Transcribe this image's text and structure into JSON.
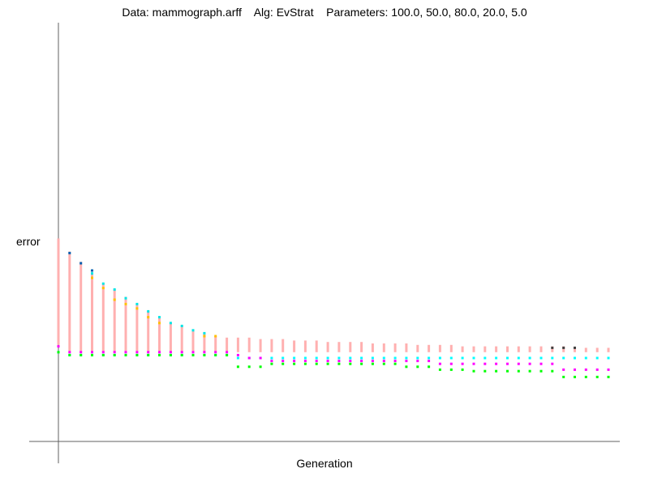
{
  "chart_data": {
    "type": "scatter",
    "title": "Data: mammograph.arff    Alg: EvStrat    Parameters: 100.0, 50.0, 80.0, 20.0, 5.0",
    "xlabel": "Generation",
    "ylabel": "error",
    "grid": false,
    "legend": "none",
    "x": [
      0,
      1,
      2,
      3,
      4,
      5,
      6,
      7,
      8,
      9,
      10,
      11,
      12,
      13,
      14,
      15,
      16,
      17,
      18,
      19,
      20,
      21,
      22,
      23,
      24,
      25,
      26,
      27,
      28,
      29,
      30,
      31,
      32,
      33,
      34,
      35,
      36,
      37,
      38,
      39,
      40,
      41,
      42,
      43,
      44,
      45,
      46,
      47,
      48,
      49
    ],
    "series": [
      {
        "color": "#ffb0b0",
        "range_min": [
          0.411,
          0.416,
          0.416,
          0.416,
          0.416,
          0.416,
          0.416,
          0.416,
          0.416,
          0.416,
          0.416,
          0.416,
          0.416,
          0.416,
          0.416,
          0.416,
          0.416,
          0.416,
          0.416,
          0.416,
          0.416,
          0.416,
          0.416,
          0.416,
          0.416,
          0.416,
          0.416,
          0.416,
          0.416,
          0.416,
          0.416,
          0.416,
          0.416,
          0.416,
          0.416,
          0.416,
          0.416,
          0.416,
          0.416,
          0.416,
          0.416,
          0.416,
          0.416,
          0.416,
          0.416,
          0.416,
          0.416,
          0.416,
          0.416,
          0.416
        ],
        "range_max": [
          0.338,
          0.347,
          0.354,
          0.362,
          0.369,
          0.373,
          0.378,
          0.383,
          0.388,
          0.392,
          0.396,
          0.398,
          0.401,
          0.403,
          0.405,
          0.406,
          0.406,
          0.406,
          0.407,
          0.407,
          0.407,
          0.408,
          0.408,
          0.408,
          0.409,
          0.409,
          0.409,
          0.409,
          0.41,
          0.41,
          0.41,
          0.41,
          0.411,
          0.411,
          0.411,
          0.411,
          0.412,
          0.412,
          0.412,
          0.412,
          0.412,
          0.412,
          0.412,
          0.412,
          0.412,
          0.412,
          0.413,
          0.413,
          0.413,
          0.413
        ]
      },
      {
        "color": "#00ffff",
        "values": [
          0.416,
          0.418,
          0.418,
          0.418,
          0.418,
          0.418,
          0.418,
          0.418,
          0.418,
          0.418,
          0.418,
          0.418,
          0.418,
          0.418,
          0.418,
          0.418,
          0.42,
          0.42,
          0.42,
          0.42,
          0.42,
          0.42,
          0.42,
          0.42,
          0.42,
          0.42,
          0.42,
          0.42,
          0.42,
          0.42,
          0.42,
          0.42,
          0.42,
          0.42,
          0.42,
          0.42,
          0.42,
          0.42,
          0.42,
          0.42,
          0.42,
          0.42,
          0.42,
          0.42,
          0.42,
          0.42,
          0.42,
          0.42,
          0.42,
          0.42
        ]
      },
      {
        "color": "#00ff00",
        "values": [
          0.416,
          0.418,
          0.418,
          0.418,
          0.418,
          0.418,
          0.418,
          0.418,
          0.418,
          0.418,
          0.418,
          0.418,
          0.418,
          0.418,
          0.418,
          0.418,
          0.426,
          0.426,
          0.426,
          0.424,
          0.424,
          0.424,
          0.424,
          0.424,
          0.424,
          0.424,
          0.424,
          0.424,
          0.424,
          0.424,
          0.424,
          0.426,
          0.426,
          0.426,
          0.428,
          0.428,
          0.428,
          0.429,
          0.429,
          0.429,
          0.429,
          0.429,
          0.429,
          0.429,
          0.429,
          0.433,
          0.433,
          0.433,
          0.433,
          0.433
        ]
      },
      {
        "color": "#ff00ff",
        "values": [
          0.412,
          0.416,
          0.416,
          0.416,
          0.416,
          0.416,
          0.416,
          0.416,
          0.416,
          0.416,
          0.416,
          0.416,
          0.416,
          0.416,
          0.416,
          0.416,
          0.418,
          0.42,
          0.42,
          0.422,
          0.422,
          0.422,
          0.422,
          0.422,
          0.422,
          0.422,
          0.422,
          0.422,
          0.422,
          0.422,
          0.422,
          0.422,
          0.422,
          0.422,
          0.424,
          0.424,
          0.424,
          0.424,
          0.424,
          0.424,
          0.424,
          0.424,
          0.424,
          0.424,
          0.424,
          0.428,
          0.428,
          0.428,
          0.428,
          0.428
        ]
      },
      {
        "color": "#0060b0",
        "values": [
          null,
          0.348,
          0.355,
          0.36,
          null,
          null,
          null,
          null,
          null,
          null,
          null,
          null,
          null,
          null,
          null,
          null,
          null,
          null,
          null,
          null,
          null,
          null,
          null,
          null,
          null,
          null,
          null,
          null,
          null,
          null,
          null,
          null,
          null,
          null,
          null,
          null,
          null,
          null,
          null,
          null,
          null,
          null,
          null,
          null,
          null,
          null,
          null,
          null,
          null,
          null
        ]
      },
      {
        "color": "#00e5e5",
        "values": [
          null,
          null,
          null,
          0.362,
          0.369,
          0.373,
          0.379,
          0.383,
          0.388,
          0.392,
          0.396,
          0.398,
          0.401,
          0.403,
          null,
          null,
          null,
          null,
          null,
          null,
          null,
          null,
          null,
          null,
          null,
          null,
          null,
          null,
          null,
          null,
          null,
          null,
          null,
          null,
          null,
          null,
          null,
          null,
          null,
          null,
          null,
          null,
          null,
          null,
          null,
          null,
          null,
          null,
          null,
          null
        ]
      },
      {
        "color": "#ffc000",
        "values": [
          null,
          null,
          null,
          0.365,
          0.372,
          0.38,
          0.383,
          0.386,
          0.392,
          0.396,
          null,
          null,
          null,
          0.405,
          0.405,
          null,
          null,
          null,
          null,
          null,
          null,
          null,
          null,
          null,
          null,
          null,
          null,
          null,
          null,
          null,
          null,
          null,
          null,
          null,
          null,
          null,
          null,
          null,
          null,
          null,
          null,
          null,
          null,
          null,
          null,
          null,
          null,
          null,
          null,
          null
        ]
      },
      {
        "color": "#404040",
        "values": [
          null,
          null,
          null,
          null,
          null,
          null,
          null,
          null,
          null,
          null,
          null,
          null,
          null,
          null,
          null,
          null,
          null,
          null,
          null,
          null,
          null,
          null,
          null,
          null,
          null,
          null,
          null,
          null,
          null,
          null,
          null,
          null,
          null,
          null,
          null,
          null,
          null,
          null,
          null,
          null,
          null,
          null,
          null,
          null,
          0.413,
          0.413,
          0.413,
          null,
          null,
          null
        ]
      }
    ]
  }
}
